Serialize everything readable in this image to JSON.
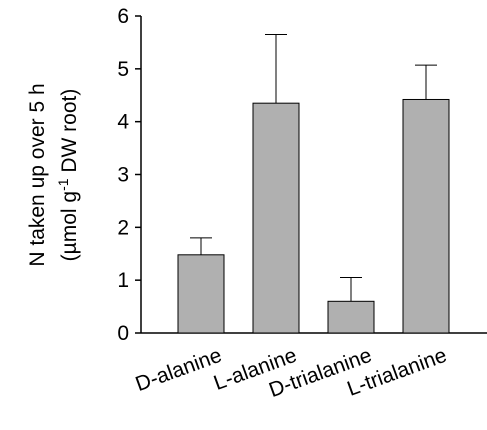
{
  "chart_data": {
    "type": "bar",
    "ylabel": {
      "line1": "N taken up over 5 h",
      "line2_start": "(µmol g",
      "line2_sup": "-1",
      "line2_end": " DW root)"
    },
    "categories": [
      "D-alanine",
      "L-alanine",
      "D-trialanine",
      "L-trialanine"
    ],
    "values": [
      1.48,
      4.35,
      0.6,
      4.42
    ],
    "errors": [
      0.32,
      1.3,
      0.45,
      0.65
    ],
    "color": "#b0b0b0",
    "ylim": [
      0,
      6
    ],
    "yticks": [
      0,
      1,
      2,
      3,
      4,
      5,
      6
    ],
    "grid": false
  }
}
